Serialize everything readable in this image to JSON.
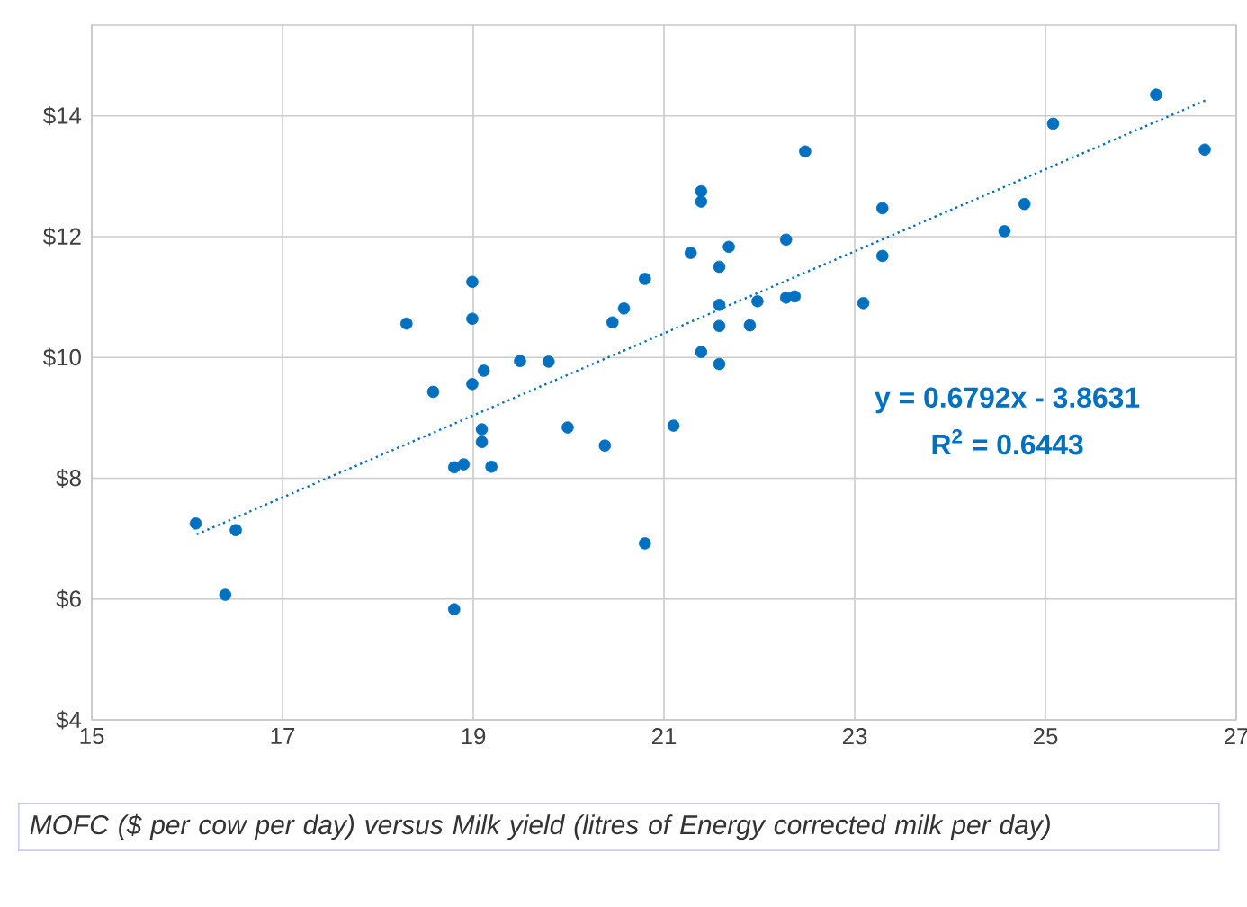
{
  "chart_data": {
    "type": "scatter",
    "xlim": [
      15,
      27
    ],
    "xticks": [
      15,
      17,
      19,
      21,
      23,
      25,
      27
    ],
    "ylim": [
      4,
      15.5
    ],
    "yticks": [
      {
        "value": 4,
        "label": "$4"
      },
      {
        "value": 6,
        "label": "$6"
      },
      {
        "value": 8,
        "label": "$8"
      },
      {
        "value": 10,
        "label": "$10"
      },
      {
        "value": 12,
        "label": "$12"
      },
      {
        "value": 14,
        "label": "$14"
      }
    ],
    "grid": true,
    "marker": "circle",
    "series": [
      {
        "color": "#0070c0",
        "x": [
          16.09,
          16.51,
          16.4,
          18.8,
          18.8,
          18.9,
          19.19,
          19.09,
          19.09,
          18.3,
          18.99,
          18.99,
          18.58,
          18.99,
          19.11,
          19.49,
          19.79,
          19.99,
          20.38,
          20.46,
          20.58,
          20.8,
          20.8,
          21.1,
          22.48,
          21.39,
          21.39,
          21.28,
          21.68,
          21.58,
          22.28,
          21.58,
          21.98,
          22.28,
          22.37,
          21.58,
          21.9,
          21.39,
          21.58,
          23.09,
          23.29,
          23.29,
          24.57,
          24.78,
          25.08,
          26.16,
          26.67
        ],
        "values": [
          7.25,
          7.14,
          6.07,
          5.83,
          8.18,
          8.23,
          8.19,
          8.81,
          8.6,
          10.56,
          11.25,
          10.64,
          9.43,
          9.56,
          9.78,
          9.94,
          9.93,
          8.84,
          8.54,
          10.58,
          10.81,
          11.3,
          6.92,
          8.87,
          13.41,
          12.75,
          12.58,
          11.73,
          11.83,
          11.5,
          11.95,
          10.87,
          10.93,
          10.99,
          11.01,
          10.52,
          10.53,
          10.09,
          9.89,
          10.9,
          12.47,
          11.68,
          12.09,
          12.54,
          13.87,
          14.35,
          13.44
        ]
      },
      {
        "type": "line",
        "color": "#0070c0",
        "line_style": "dotted",
        "marker": "none",
        "x": [
          16.1,
          26.7
        ],
        "values": [
          7.07,
          14.27
        ]
      }
    ],
    "annotations": [
      "y = 0.6792x - 3.8631",
      "R$^{2}$ = 0.6443",
      "*MOFC ($ per cow per day) versus Milk yield (litres of Energy corrected milk per day)*"
    ]
  }
}
